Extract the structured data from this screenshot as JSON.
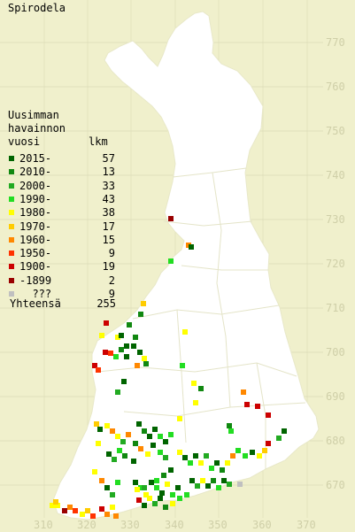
{
  "title": "Spirodela",
  "legend": {
    "heading_lines": [
      "Uusimman",
      "havainnon",
      "vuosi"
    ],
    "count_header": "lkm",
    "entries": [
      {
        "label": "2015-",
        "count": "57",
        "color": "#006400"
      },
      {
        "label": "2010-",
        "count": "13",
        "color": "#118811"
      },
      {
        "label": "2000-",
        "count": "33",
        "color": "#22aa22"
      },
      {
        "label": "1990-",
        "count": "43",
        "color": "#22dd22"
      },
      {
        "label": "1980-",
        "count": "38",
        "color": "#ffff00"
      },
      {
        "label": "1970-",
        "count": "17",
        "color": "#ffcc00"
      },
      {
        "label": "1960-",
        "count": "15",
        "color": "#ff8800"
      },
      {
        "label": "1950-",
        "count": "9",
        "color": "#ff3300"
      },
      {
        "label": "1900-",
        "count": "19",
        "color": "#cc0000"
      },
      {
        "label": "-1899",
        "count": "2",
        "color": "#990000"
      },
      {
        "label": "???",
        "count": "9",
        "color": "#c0c0c0"
      }
    ],
    "total_label": "Yhteensä",
    "total_count": "255"
  },
  "axis_labels": {
    "northing": [
      "770",
      "760",
      "750",
      "740",
      "730",
      "720",
      "710",
      "700",
      "690",
      "680",
      "670"
    ],
    "easting": [
      "310",
      "320",
      "330",
      "340",
      "350",
      "360",
      "370"
    ]
  },
  "colors": {
    "background": "#f0f0cc",
    "land": "#ffffff",
    "grid": "#ddddb8",
    "label": "#cfcfa8"
  }
}
